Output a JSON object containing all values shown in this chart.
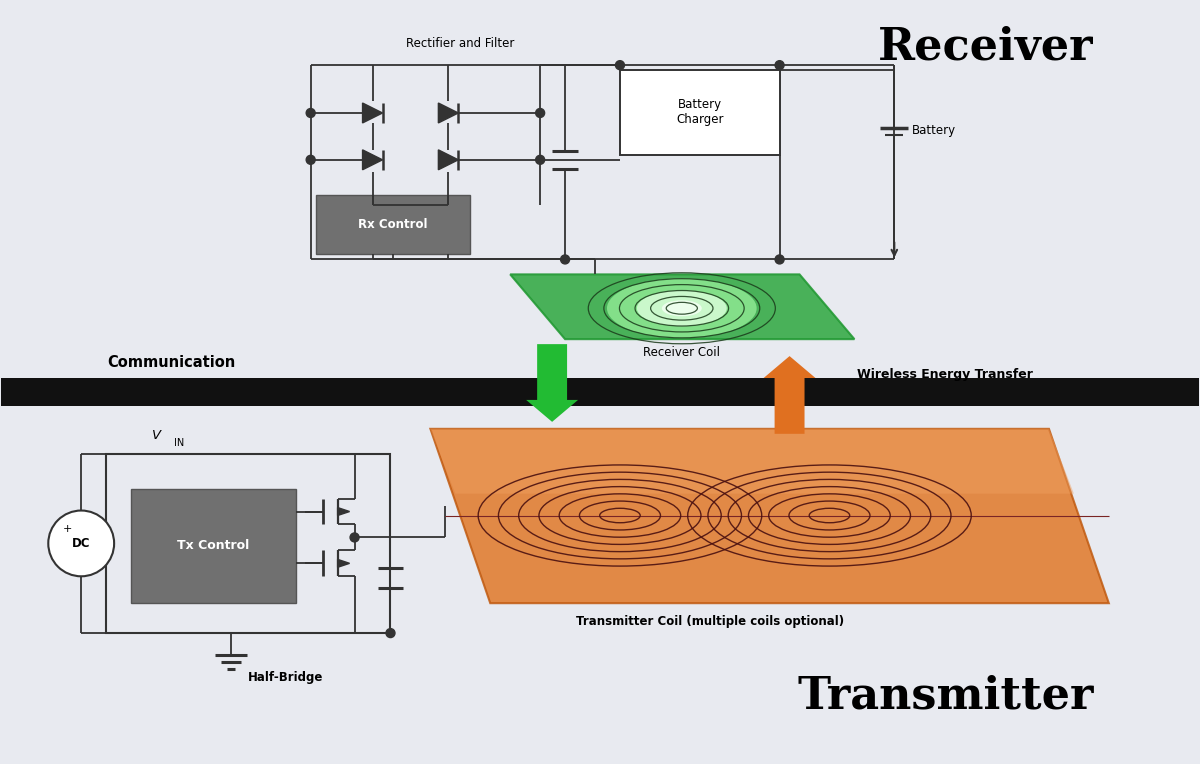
{
  "bg_color": "#e8eaf0",
  "divider_color": "#111111",
  "title_receiver": "Receiver",
  "title_transmitter": "Transmitter",
  "title_fontsize": 32,
  "label_communication": "Communication",
  "label_wireless": "Wireless Energy Transfer",
  "label_rx_control": "Rx Control",
  "label_tx_control": "Tx Control",
  "label_battery_charger": "Battery\nCharger",
  "label_battery": "Battery",
  "label_rectifier": "Rectifier and Filter",
  "label_receiver_coil": "Receiver Coil",
  "label_transmitter_coil": "Transmitter Coil (multiple coils optional)",
  "label_half_bridge": "Half-Bridge",
  "label_dc": "DC",
  "green_arrow_color": "#22bb33",
  "orange_arrow_color": "#e07020",
  "line_color": "#333333",
  "gray_block": "#707070",
  "green_coil_bg": "#33aa44",
  "orange_coil_bg": "#e07828",
  "coil_line_dark": "#4a1010"
}
